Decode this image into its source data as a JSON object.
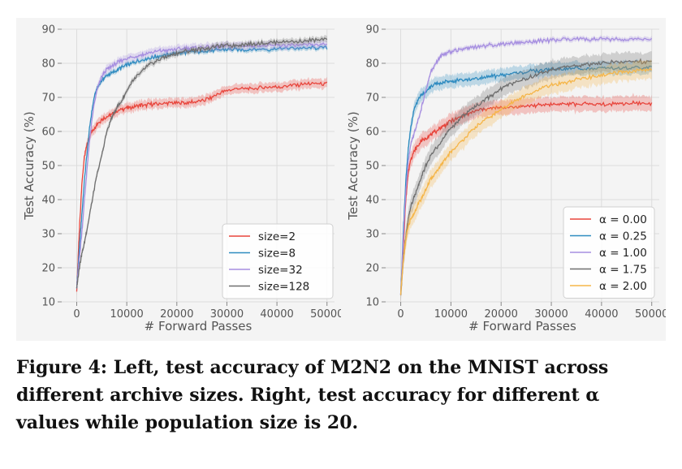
{
  "caption": "Figure 4: Left, test accuracy of M2N2 on the MNIST across different archive sizes. Right, test accuracy for different α values while population size is 20.",
  "chart_data": [
    {
      "type": "line",
      "xlabel": "# Forward Passes",
      "ylabel": "Test Accuracy (%)",
      "xlim": [
        -3000,
        51500
      ],
      "ylim": [
        10,
        90
      ],
      "xticks": [
        0,
        10000,
        20000,
        30000,
        40000,
        50000
      ],
      "yticks": [
        10,
        20,
        30,
        40,
        50,
        60,
        70,
        80,
        90
      ],
      "grid": true,
      "legend": "bottom-right",
      "series": [
        {
          "name": "size=2",
          "color": "#e8453c",
          "band": 1.6,
          "points": [
            [
              0,
              13
            ],
            [
              500,
              30
            ],
            [
              1000,
              44
            ],
            [
              1500,
              52
            ],
            [
              2000,
              56
            ],
            [
              3000,
              60
            ],
            [
              4000,
              62
            ],
            [
              5000,
              63.5
            ],
            [
              7000,
              65
            ],
            [
              9000,
              66.5
            ],
            [
              12000,
              67.5
            ],
            [
              15000,
              68
            ],
            [
              18000,
              68.3
            ],
            [
              22000,
              68.5
            ],
            [
              25000,
              69
            ],
            [
              27000,
              70
            ],
            [
              28000,
              71
            ],
            [
              30000,
              72
            ],
            [
              32000,
              72.5
            ],
            [
              35000,
              72.5
            ],
            [
              38000,
              73
            ],
            [
              41000,
              73.2
            ],
            [
              43000,
              73.5
            ],
            [
              46000,
              74
            ],
            [
              50000,
              74
            ]
          ]
        },
        {
          "name": "size=8",
          "color": "#2e8bc0",
          "band": 0.8,
          "points": [
            [
              0,
              14
            ],
            [
              500,
              25
            ],
            [
              1000,
              35
            ],
            [
              1500,
              45
            ],
            [
              2000,
              53
            ],
            [
              2500,
              60
            ],
            [
              3000,
              66
            ],
            [
              3500,
              70
            ],
            [
              4000,
              72.5
            ],
            [
              5000,
              75
            ],
            [
              6000,
              76.3
            ],
            [
              8000,
              78
            ],
            [
              10000,
              79.5
            ],
            [
              13000,
              81
            ],
            [
              16000,
              82
            ],
            [
              20000,
              83
            ],
            [
              25000,
              83.5
            ],
            [
              30000,
              84
            ],
            [
              35000,
              84
            ],
            [
              40000,
              84.3
            ],
            [
              45000,
              84.5
            ],
            [
              50000,
              84.5
            ]
          ]
        },
        {
          "name": "size=32",
          "color": "#a68ee0",
          "band": 1.3,
          "points": [
            [
              0,
              14
            ],
            [
              500,
              22
            ],
            [
              1000,
              30
            ],
            [
              1500,
              39
            ],
            [
              2000,
              48
            ],
            [
              2500,
              56
            ],
            [
              3000,
              63
            ],
            [
              3500,
              68
            ],
            [
              4000,
              72
            ],
            [
              5000,
              76
            ],
            [
              6000,
              78.3
            ],
            [
              8000,
              80
            ],
            [
              10000,
              81.5
            ],
            [
              13000,
              82.5
            ],
            [
              16000,
              83.5
            ],
            [
              20000,
              84.2
            ],
            [
              25000,
              84.7
            ],
            [
              30000,
              85
            ],
            [
              35000,
              85.2
            ],
            [
              40000,
              85.2
            ],
            [
              45000,
              85.3
            ],
            [
              50000,
              85.5
            ]
          ]
        },
        {
          "name": "size=128",
          "color": "#6e6e6e",
          "band": 1.0,
          "points": [
            [
              0,
              14
            ],
            [
              500,
              20
            ],
            [
              1000,
              24
            ],
            [
              1500,
              27
            ],
            [
              2000,
              31
            ],
            [
              3000,
              39
            ],
            [
              4000,
              47
            ],
            [
              5000,
              53
            ],
            [
              6000,
              60
            ],
            [
              7000,
              64
            ],
            [
              8000,
              67
            ],
            [
              9000,
              69
            ],
            [
              10000,
              72
            ],
            [
              11000,
              74.5
            ],
            [
              12000,
              76
            ],
            [
              13000,
              77.5
            ],
            [
              14000,
              79
            ],
            [
              15000,
              80
            ],
            [
              17000,
              81.5
            ],
            [
              19000,
              82.5
            ],
            [
              21000,
              83.3
            ],
            [
              24000,
              84
            ],
            [
              27000,
              84.7
            ],
            [
              30000,
              85.2
            ],
            [
              35000,
              85.7
            ],
            [
              40000,
              86.2
            ],
            [
              45000,
              86.5
            ],
            [
              50000,
              87
            ]
          ]
        }
      ]
    },
    {
      "type": "line",
      "xlabel": "# Forward Passes",
      "ylabel": "Test Accuracy (%)",
      "xlim": [
        -3000,
        51500
      ],
      "ylim": [
        10,
        90
      ],
      "xticks": [
        0,
        10000,
        20000,
        30000,
        40000,
        50000
      ],
      "yticks": [
        10,
        20,
        30,
        40,
        50,
        60,
        70,
        80,
        90
      ],
      "grid": true,
      "legend": "bottom-right",
      "series": [
        {
          "name": "α = 0.00",
          "color": "#e8453c",
          "band": 2.5,
          "points": [
            [
              0,
              12
            ],
            [
              500,
              25
            ],
            [
              1000,
              40
            ],
            [
              1500,
              48
            ],
            [
              2000,
              52
            ],
            [
              3000,
              55
            ],
            [
              4000,
              57
            ],
            [
              6000,
              59
            ],
            [
              8000,
              61
            ],
            [
              10000,
              63
            ],
            [
              13000,
              65
            ],
            [
              16000,
              66.5
            ],
            [
              20000,
              67
            ],
            [
              25000,
              67.5
            ],
            [
              30000,
              68
            ],
            [
              35000,
              68
            ],
            [
              40000,
              68
            ],
            [
              45000,
              68.2
            ],
            [
              50000,
              68.2
            ]
          ]
        },
        {
          "name": "α = 0.25",
          "color": "#2e8bc0",
          "band": 2.2,
          "points": [
            [
              0,
              12
            ],
            [
              500,
              30
            ],
            [
              1000,
              45
            ],
            [
              1500,
              55
            ],
            [
              2000,
              61
            ],
            [
              2500,
              65
            ],
            [
              3000,
              68
            ],
            [
              4000,
              70.5
            ],
            [
              5000,
              72
            ],
            [
              7000,
              74
            ],
            [
              9000,
              74.5
            ],
            [
              12000,
              75
            ],
            [
              15000,
              75.5
            ],
            [
              20000,
              76.5
            ],
            [
              25000,
              77.5
            ],
            [
              30000,
              78.2
            ],
            [
              35000,
              78.5
            ],
            [
              40000,
              78.5
            ],
            [
              45000,
              78.6
            ],
            [
              50000,
              78.7
            ]
          ]
        },
        {
          "name": "α = 1.00",
          "color": "#a68ee0",
          "band": 0.8,
          "points": [
            [
              0,
              12
            ],
            [
              500,
              28
            ],
            [
              1000,
              42
            ],
            [
              1500,
              51
            ],
            [
              2000,
              56
            ],
            [
              3000,
              61
            ],
            [
              4000,
              66
            ],
            [
              5000,
              72
            ],
            [
              6000,
              77.5
            ],
            [
              7000,
              80
            ],
            [
              8000,
              82
            ],
            [
              10000,
              83.5
            ],
            [
              13000,
              84.5
            ],
            [
              16000,
              85
            ],
            [
              20000,
              85.7
            ],
            [
              25000,
              86.2
            ],
            [
              30000,
              86.8
            ],
            [
              35000,
              87
            ],
            [
              40000,
              87
            ],
            [
              45000,
              87
            ],
            [
              50000,
              87
            ]
          ]
        },
        {
          "name": "α = 1.75",
          "color": "#6e6e6e",
          "band": 3.0,
          "points": [
            [
              0,
              12
            ],
            [
              500,
              22
            ],
            [
              1000,
              29
            ],
            [
              1500,
              34
            ],
            [
              2000,
              38
            ],
            [
              3000,
              42
            ],
            [
              4000,
              46
            ],
            [
              5000,
              50
            ],
            [
              6000,
              53
            ],
            [
              8000,
              57
            ],
            [
              10000,
              61
            ],
            [
              12000,
              64
            ],
            [
              14000,
              66.5
            ],
            [
              16000,
              68.5
            ],
            [
              18000,
              70.5
            ],
            [
              20000,
              72.5
            ],
            [
              22000,
              74
            ],
            [
              25000,
              75.5
            ],
            [
              28000,
              77
            ],
            [
              30000,
              78
            ],
            [
              33000,
              79
            ],
            [
              36000,
              79.5
            ],
            [
              40000,
              80
            ],
            [
              45000,
              80.5
            ],
            [
              50000,
              80.5
            ]
          ]
        },
        {
          "name": "α = 2.00",
          "color": "#f5b548",
          "band": 3.0,
          "points": [
            [
              0,
              12
            ],
            [
              500,
              22
            ],
            [
              1000,
              28
            ],
            [
              1500,
              32
            ],
            [
              2000,
              34
            ],
            [
              3000,
              37
            ],
            [
              4000,
              40
            ],
            [
              5000,
              43
            ],
            [
              6000,
              46
            ],
            [
              8000,
              50
            ],
            [
              10000,
              54
            ],
            [
              12000,
              57
            ],
            [
              14000,
              60
            ],
            [
              16000,
              62.5
            ],
            [
              18000,
              64.5
            ],
            [
              20000,
              66.5
            ],
            [
              22000,
              68.5
            ],
            [
              25000,
              70.5
            ],
            [
              28000,
              72.5
            ],
            [
              30000,
              73.5
            ],
            [
              33000,
              74.5
            ],
            [
              36000,
              75.5
            ],
            [
              40000,
              76.5
            ],
            [
              45000,
              77.5
            ],
            [
              50000,
              78
            ]
          ]
        }
      ]
    }
  ]
}
